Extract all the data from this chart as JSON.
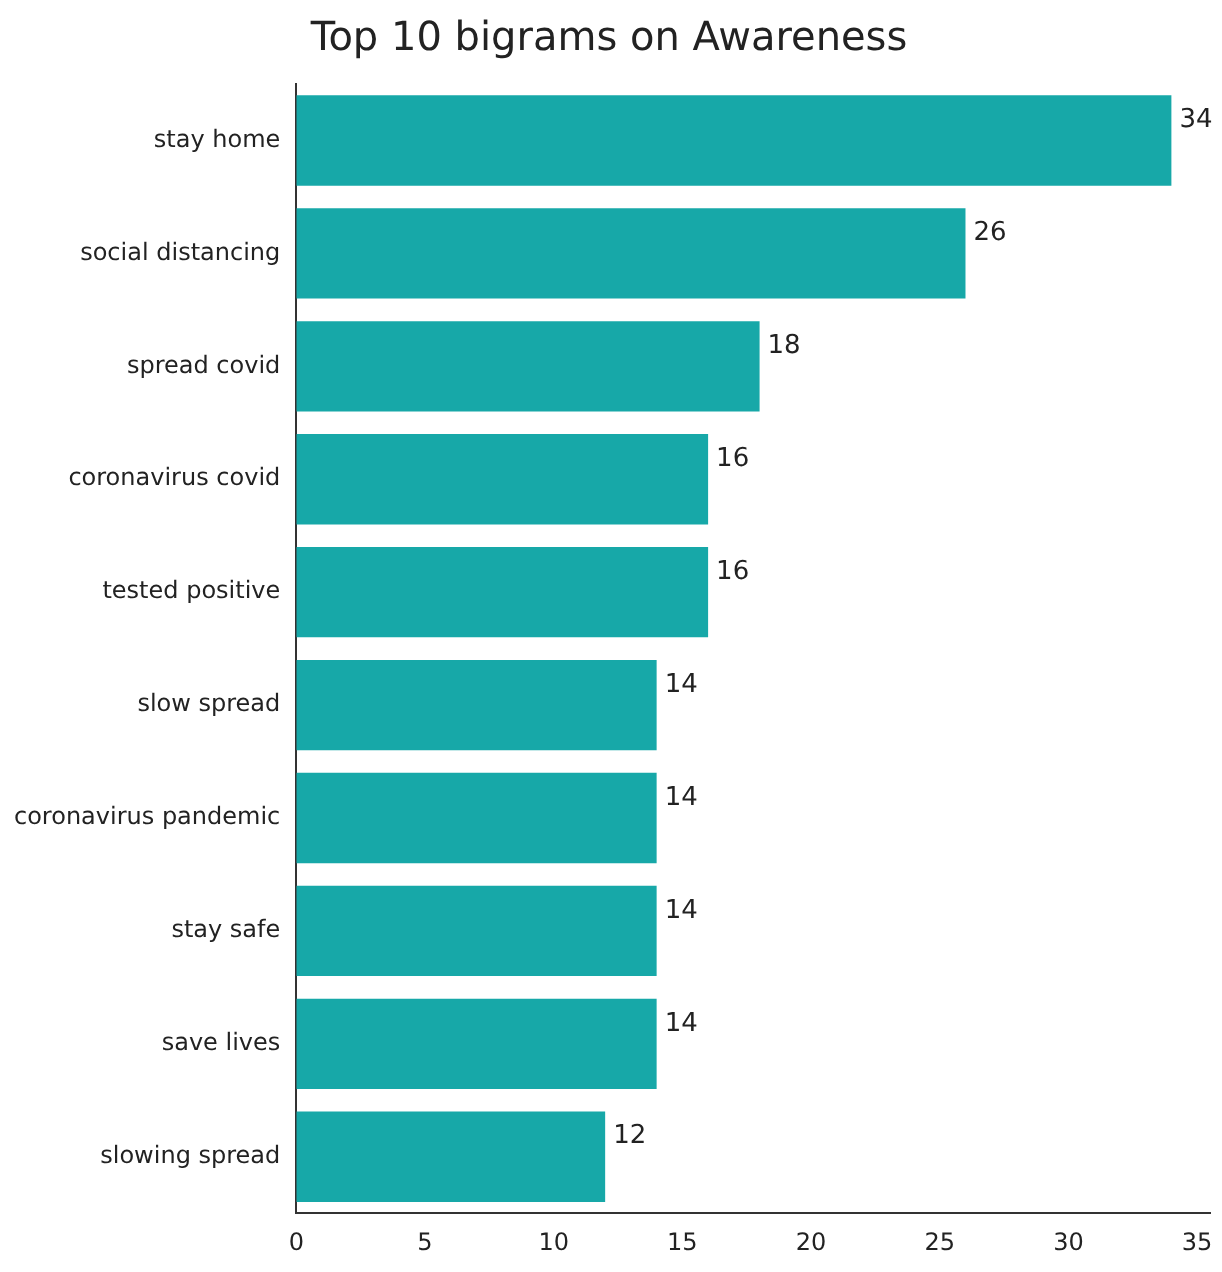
{
  "chart_data": {
    "type": "bar",
    "orientation": "horizontal",
    "title": "Top 10 bigrams on Awareness",
    "categories": [
      "stay home",
      "social distancing",
      "spread covid",
      "coronavirus covid",
      "tested positive",
      "slow spread",
      "coronavirus pandemic",
      "stay safe",
      "save lives",
      "slowing spread"
    ],
    "values": [
      34,
      26,
      18,
      16,
      16,
      14,
      14,
      14,
      14,
      12
    ],
    "color": "#17a8a8",
    "xlim": [
      0,
      35.5
    ],
    "xticks": [
      0,
      5,
      10,
      15,
      20,
      25,
      30,
      35
    ],
    "data_labels": true,
    "grid": false,
    "legend": false
  }
}
